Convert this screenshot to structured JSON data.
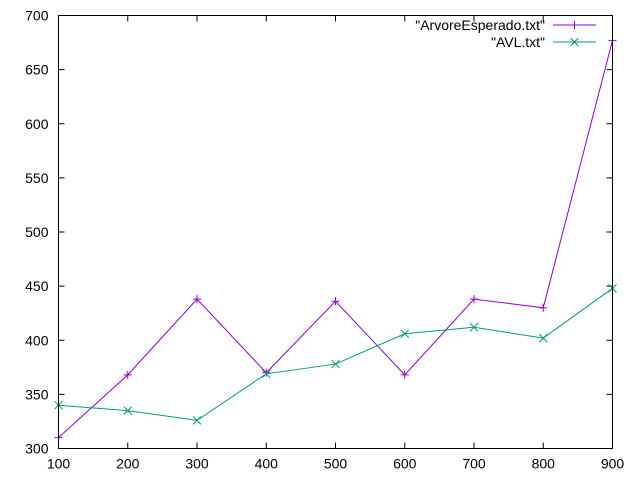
{
  "chart_data": {
    "type": "line",
    "title": "",
    "xlabel": "",
    "ylabel": "",
    "x": [
      100,
      200,
      300,
      400,
      500,
      600,
      700,
      800,
      900
    ],
    "xlim": [
      100,
      900
    ],
    "ylim": [
      300,
      700
    ],
    "x_ticks": [
      100,
      200,
      300,
      400,
      500,
      600,
      700,
      800,
      900
    ],
    "y_ticks": [
      300,
      350,
      400,
      450,
      500,
      550,
      600,
      650,
      700
    ],
    "grid": false,
    "legend_position": "top-right",
    "series": [
      {
        "name": "\"ArvoreEsperado.txt\"",
        "color": "#9400d3",
        "marker": "plus",
        "values": [
          310,
          368,
          438,
          370,
          436,
          368,
          438,
          430,
          677
        ]
      },
      {
        "name": "\"AVL.txt\"",
        "color": "#009e73",
        "marker": "cross",
        "values": [
          340,
          335,
          326,
          369,
          378,
          406,
          412,
          402,
          448
        ]
      }
    ]
  }
}
